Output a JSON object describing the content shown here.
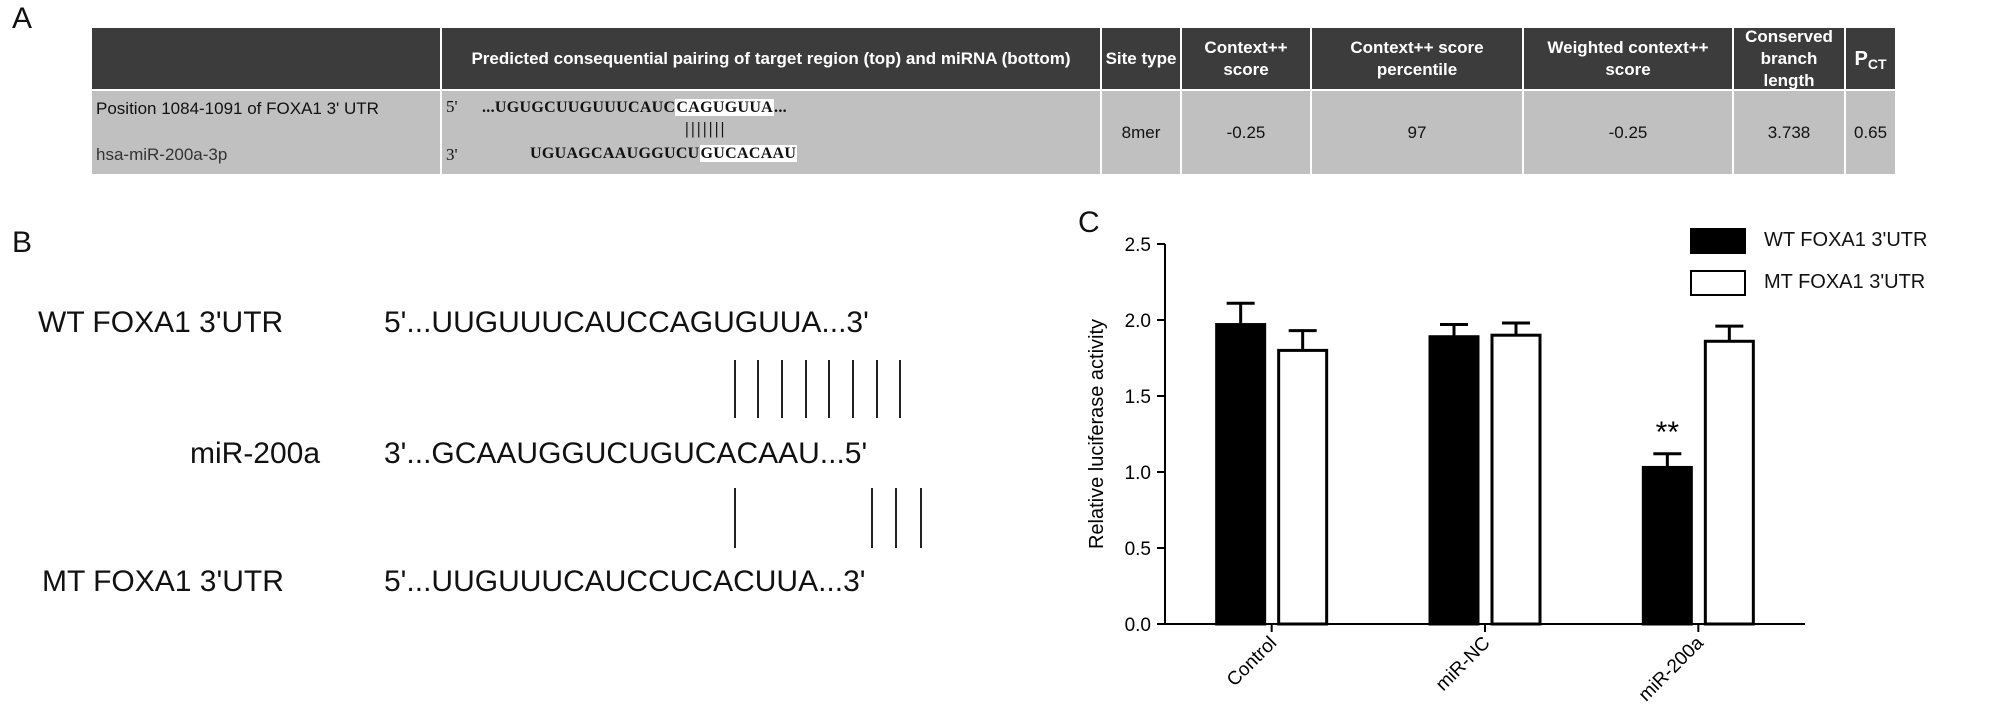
{
  "panels": {
    "a": "A",
    "b": "B",
    "c": "C"
  },
  "table": {
    "headers": [
      "",
      "Predicted consequential pairing of target region (top) and miRNA (bottom)",
      "Site type",
      "Context++ score",
      "Context++ score percentile",
      "Weighted context++ score",
      "Conserved branch length",
      "PCT"
    ],
    "pct_main": "P",
    "pct_sub": "CT",
    "row": {
      "position": "Position 1084-1091 of FOXA1 3' UTR",
      "mirna": "hsa-miR-200a-3p",
      "top_prime": "5'",
      "top_seq_left": "...UGUGCUUGUUUCAUC",
      "top_seq_box": "CAGUGUUA",
      "top_seq_right": "...",
      "pair_marks": "|||||||",
      "bottom_prime": "3'",
      "bottom_seq_left": "UGUAGCAAUGGUCU",
      "bottom_seq_box": "GUCACAAU",
      "site_type": "8mer",
      "context_score": "-0.25",
      "percentile": "97",
      "weighted": "-0.25",
      "branch_length": "3.738",
      "pct": "0.65"
    }
  },
  "panelB": {
    "wt_label": "WT FOXA1 3'UTR",
    "wt_seq": "5'...UUGUUUCAUCCAGUGUUA...3'",
    "mir_label": "miR-200a",
    "mir_seq": "3'...GCAAUGGUCUGUCACAAU...5'",
    "mt_label": "MT FOXA1 3'UTR",
    "mt_seq": "5'...UUGUUUCAUCCUCACUUA...3'"
  },
  "chart_data": {
    "type": "bar",
    "categories": [
      "Control",
      "miR-NC",
      "miR-200a"
    ],
    "series": [
      {
        "name": "WT FOXA1 3'UTR",
        "values": [
          1.97,
          1.89,
          1.03
        ],
        "errors": [
          0.14,
          0.08,
          0.09
        ],
        "fill": "#000000"
      },
      {
        "name": "MT FOXA1 3'UTR",
        "values": [
          1.8,
          1.9,
          1.86
        ],
        "errors": [
          0.13,
          0.08,
          0.1
        ],
        "fill": "#ffffff"
      }
    ],
    "ylabel": "Relative luciferase activity",
    "ylim": [
      0,
      2.5
    ],
    "yticks": [
      "0.0",
      "0.5",
      "1.0",
      "1.5",
      "2.0",
      "2.5"
    ],
    "annotation": {
      "text": "**",
      "category": "miR-200a",
      "series": "WT FOXA1 3'UTR"
    },
    "legend_position": "top-right"
  }
}
